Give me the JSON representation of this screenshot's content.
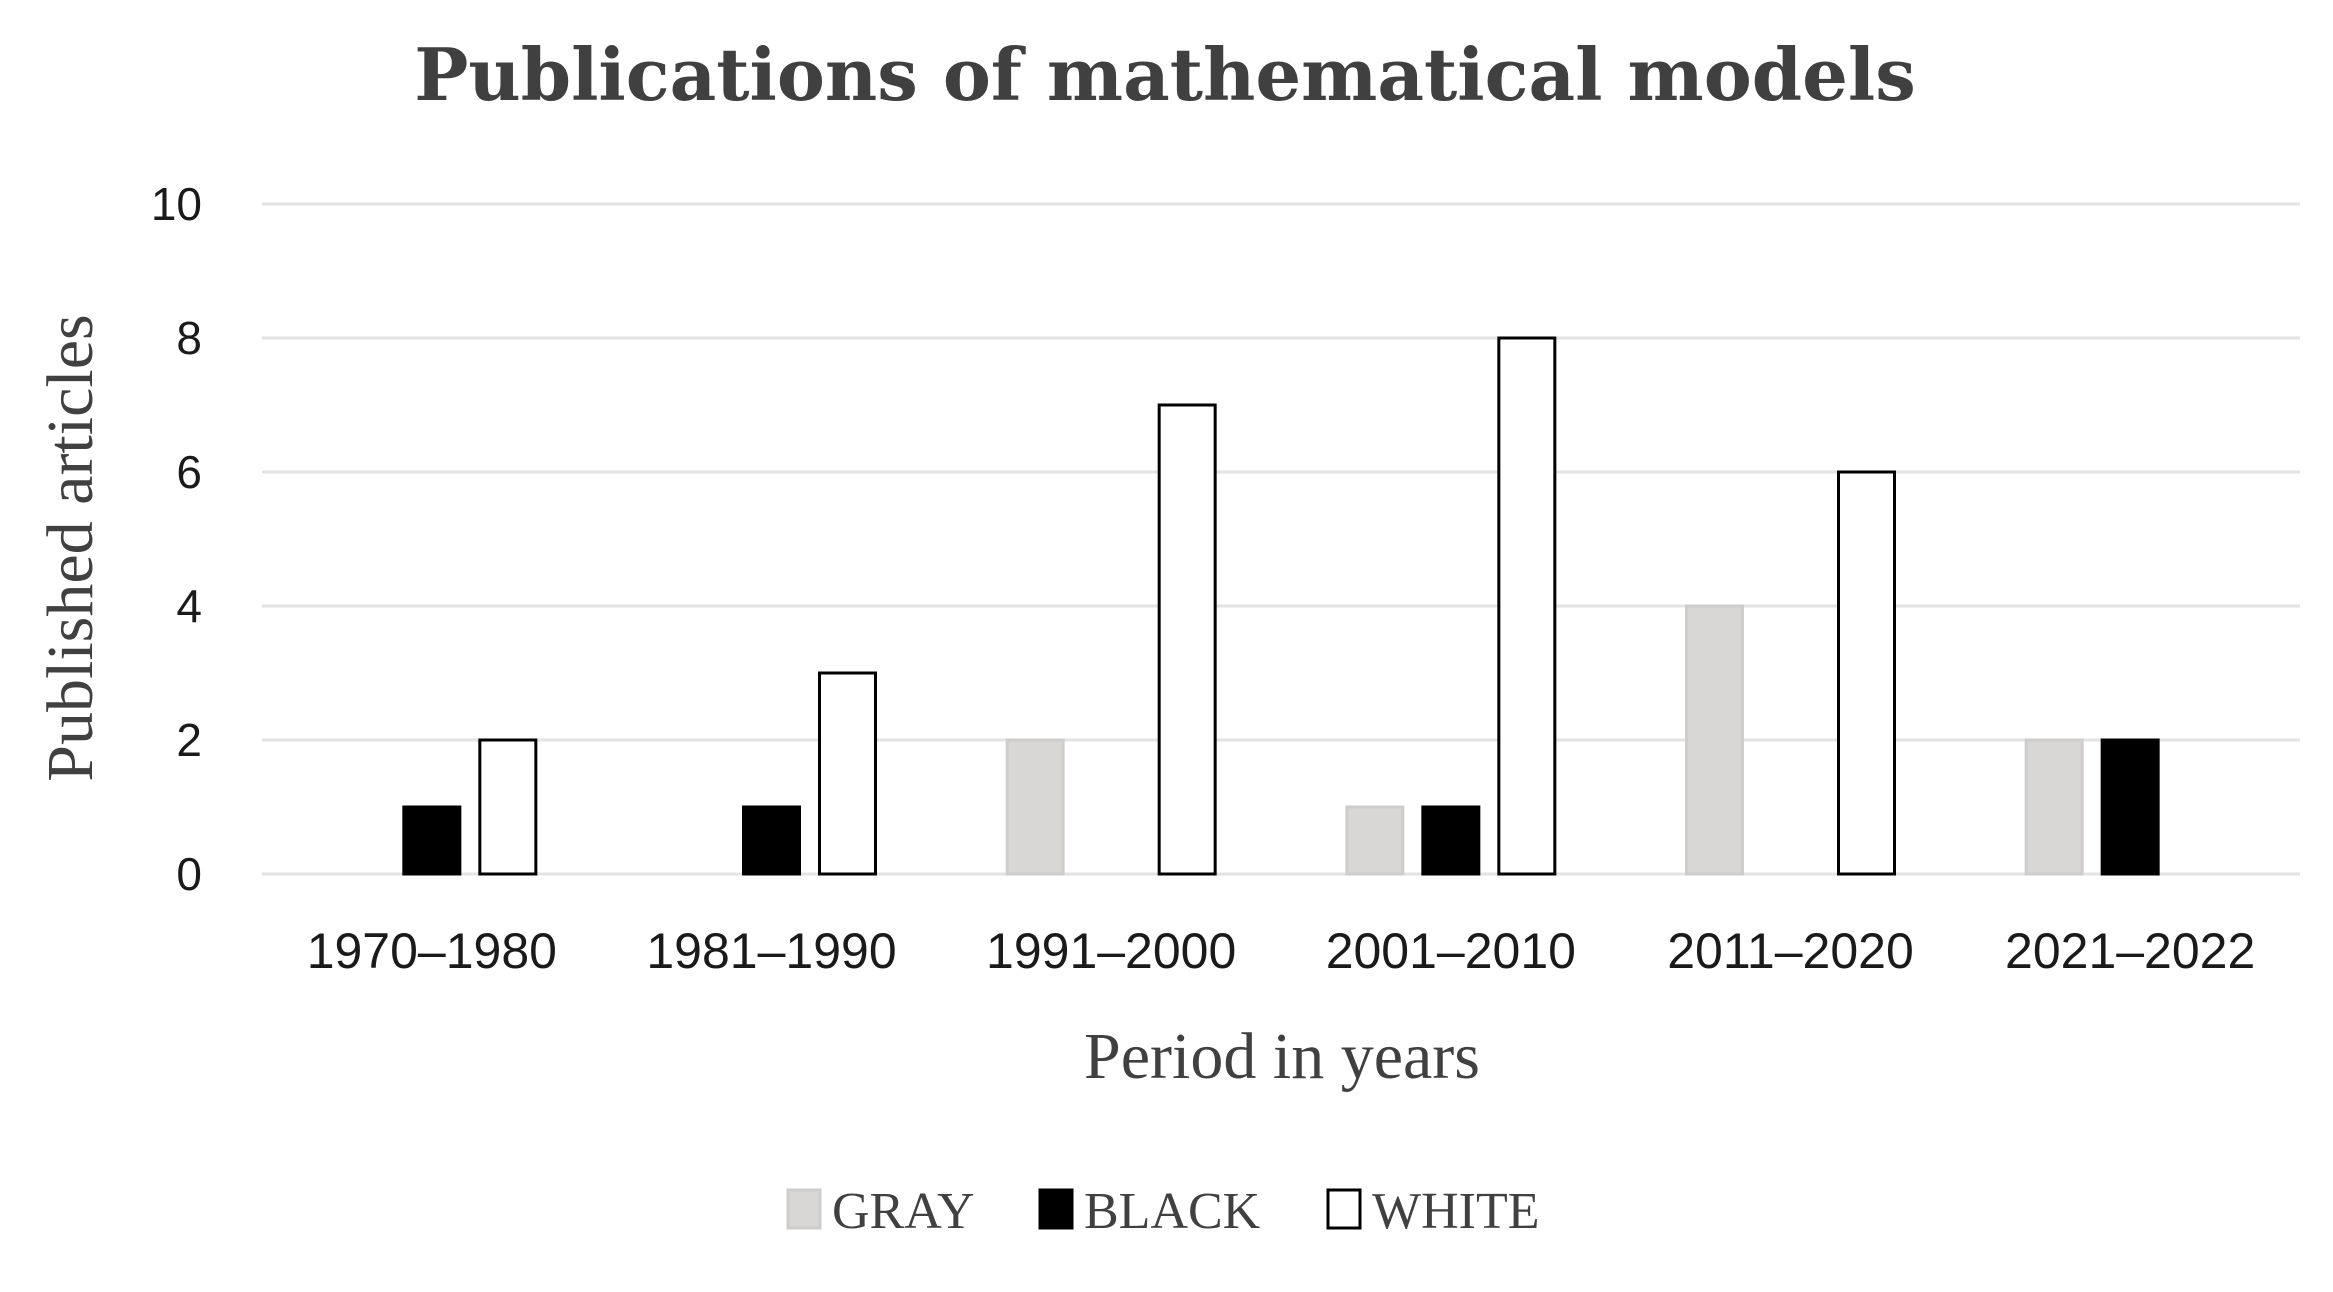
{
  "chart_data": {
    "type": "bar",
    "title": "Publications of mathematical models",
    "xlabel": "Period in years",
    "ylabel": "Published articles",
    "ylim": [
      0,
      10
    ],
    "yticks": [
      0,
      2,
      4,
      6,
      8,
      10
    ],
    "grid": true,
    "legend_position": "bottom",
    "categories": [
      "1970–1980",
      "1981–1990",
      "1991–2000",
      "2001–2010",
      "2011–2020",
      "2021–2022"
    ],
    "series": [
      {
        "name": "GRAY",
        "color": "#d9d6d6",
        "stroke": "#cfcccc",
        "values": [
          0,
          0,
          2,
          1,
          4,
          2
        ]
      },
      {
        "name": "BLACK",
        "color": "#000000",
        "stroke": "#000000",
        "values": [
          1,
          1,
          0,
          1,
          0,
          2
        ]
      },
      {
        "name": "WHITE",
        "color": "#ffffff",
        "stroke": "#000000",
        "values": [
          2,
          3,
          7,
          8,
          6,
          0
        ]
      }
    ]
  }
}
